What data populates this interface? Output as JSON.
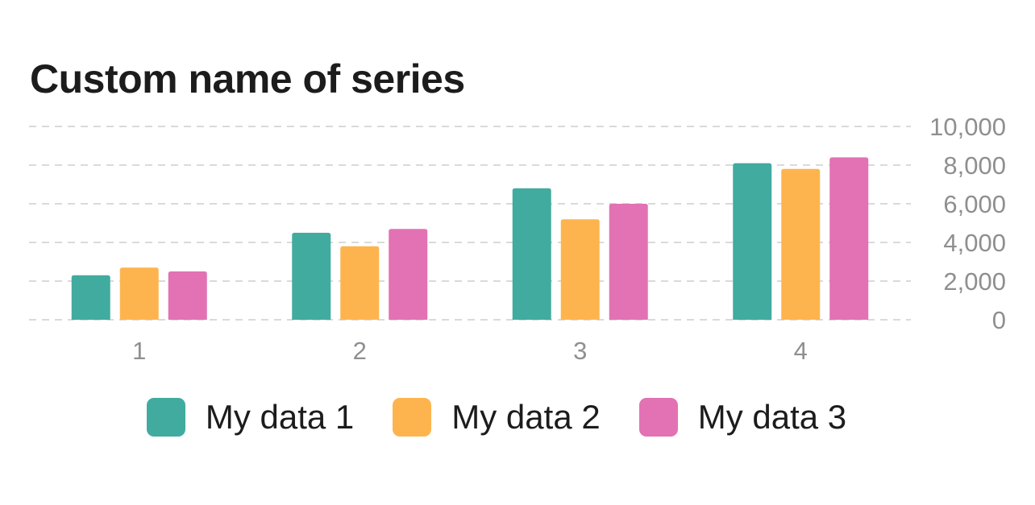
{
  "chart_data": {
    "type": "bar",
    "title": "Custom name of series",
    "categories": [
      "1",
      "2",
      "3",
      "4"
    ],
    "series": [
      {
        "name": "My data 1",
        "color": "#41ab9f",
        "values": [
          2300,
          4500,
          6800,
          8100
        ]
      },
      {
        "name": "My data 2",
        "color": "#feb44e",
        "values": [
          2700,
          3800,
          5200,
          7800
        ]
      },
      {
        "name": "My data 3",
        "color": "#e272b4",
        "values": [
          2500,
          4700,
          6000,
          8400
        ]
      }
    ],
    "ylim": [
      0,
      10000
    ],
    "yticks": [
      "0",
      "2,000",
      "4,000",
      "6,000",
      "8,000",
      "10,000"
    ],
    "ytick_values": [
      0,
      2000,
      4000,
      6000,
      8000,
      10000
    ],
    "y_axis_side": "right",
    "grid": "horizontal-dashed",
    "legend_position": "bottom"
  }
}
